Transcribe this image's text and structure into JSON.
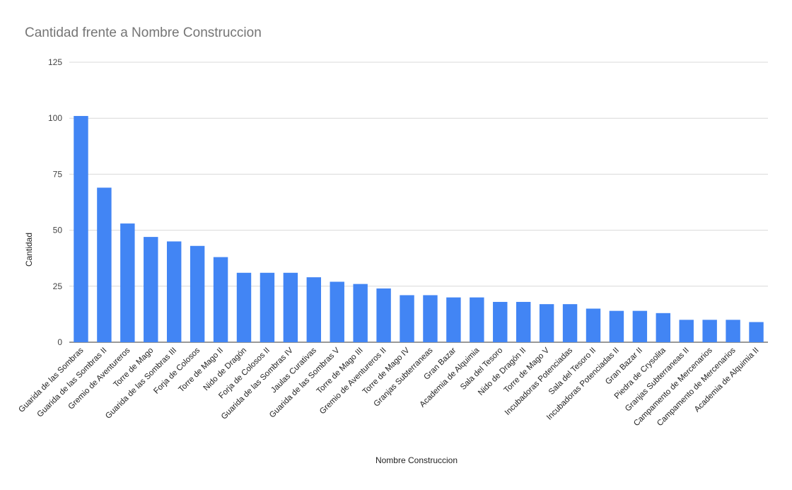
{
  "chart_data": {
    "type": "bar",
    "title": "Cantidad frente a Nombre Construccion",
    "xlabel": "Nombre Construccion",
    "ylabel": "Cantidad",
    "ylim": [
      0,
      125
    ],
    "yticks": [
      0,
      25,
      50,
      75,
      100,
      125
    ],
    "grid": true,
    "bar_color": "#4285f4",
    "categories": [
      "Guarida de las Sombras",
      "Guarida de las Sombras II",
      "Gremio de Aventureros",
      "Torre de Mago",
      "Guarida de las Sombras III",
      "Forja de Colosos",
      "Torre de Mago II",
      "Nido de Dragón",
      "Forja de Colosos II",
      "Guarida de las Sombras IV",
      "Jaulas Curativas",
      "Guarida de las Sombras V",
      "Torre de Mago III",
      "Gremio de Aventureros II",
      "Torre de Mago IV",
      "Granjas Subterraneas",
      "Gran Bazar",
      "Academia de Alquimia",
      "Sala del Tesoro",
      "Nido de Dragón II",
      "Torre de Mago V",
      "Incubadoras Potenciadas",
      "Sala del Tesoro II",
      "Incubadoras Potenciadas II",
      "Gran Bazar II",
      "Piedra de Crysolita",
      "Granjas Subterraneas II",
      "Campamento de Mercenarios",
      "Campamento de Mercenarios",
      "Academia de Alquimia II"
    ],
    "values": [
      101,
      69,
      53,
      47,
      45,
      43,
      38,
      31,
      31,
      31,
      29,
      27,
      26,
      24,
      21,
      21,
      20,
      20,
      18,
      18,
      17,
      17,
      15,
      14,
      14,
      13,
      10,
      10,
      10,
      9
    ]
  }
}
